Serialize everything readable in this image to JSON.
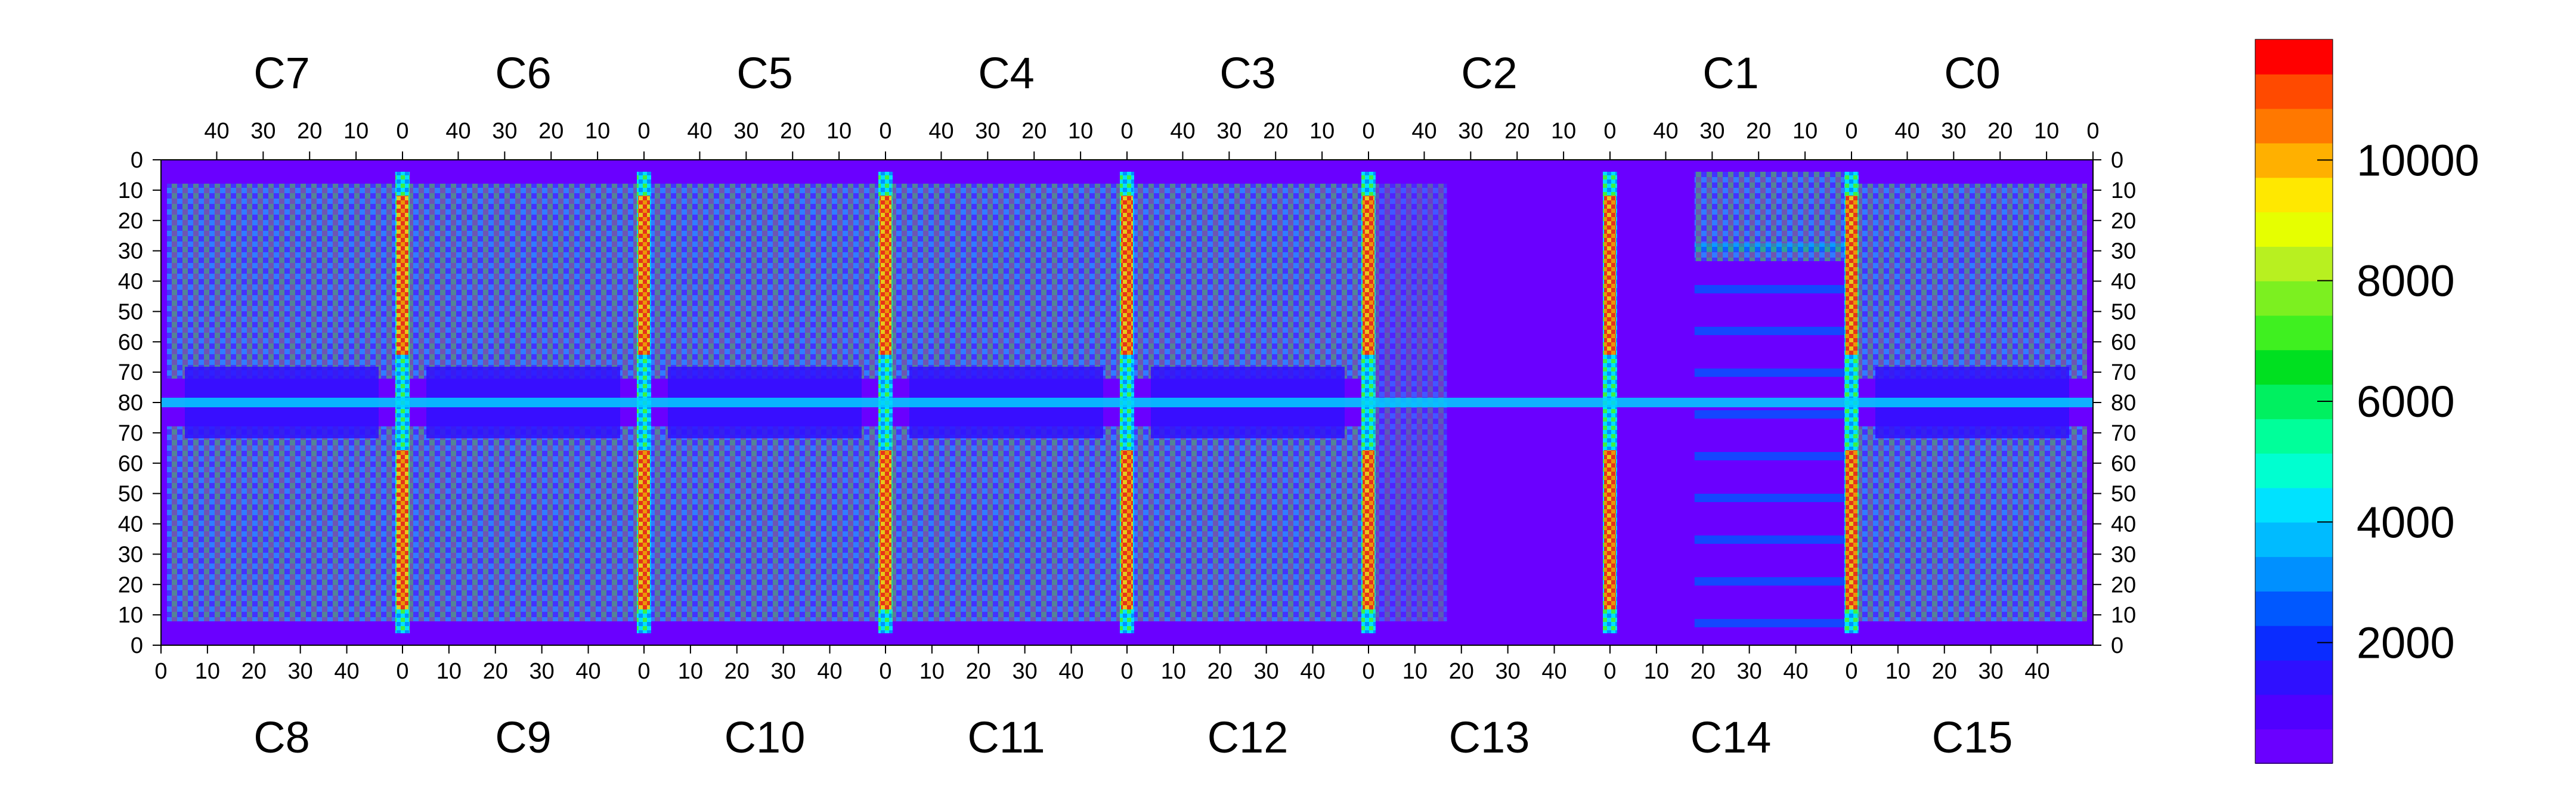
{
  "chart_data": {
    "type": "heatmap",
    "title": "",
    "chips_top": [
      "C7",
      "C6",
      "C5",
      "C4",
      "C3",
      "C2",
      "C1",
      "C0"
    ],
    "chips_bottom": [
      "C8",
      "C9",
      "C10",
      "C11",
      "C12",
      "C13",
      "C14",
      "C15"
    ],
    "x_ticks_top": [
      "40",
      "30",
      "20",
      "10",
      "0"
    ],
    "x_ticks_bottom": [
      "0",
      "10",
      "20",
      "30",
      "40"
    ],
    "y_ticks": [
      "0",
      "10",
      "20",
      "30",
      "40",
      "50",
      "60",
      "70",
      "80",
      "70",
      "60",
      "50",
      "40",
      "30",
      "20",
      "10",
      "0"
    ],
    "x_range_per_chip": [
      0,
      52
    ],
    "y_range_per_half": [
      0,
      80
    ],
    "colorbar": {
      "min": 0,
      "max": 12000,
      "ticks": [
        "2000",
        "4000",
        "6000",
        "8000",
        "10000"
      ],
      "tick_values": [
        2000,
        4000,
        6000,
        8000,
        10000
      ],
      "colors": [
        "#6a00ff",
        "#5000ff",
        "#2f10ff",
        "#0a2cff",
        "#0058ff",
        "#0090ff",
        "#00bbff",
        "#00e2ff",
        "#00ffd0",
        "#00ff9a",
        "#00f060",
        "#00e020",
        "#3ff020",
        "#7cf020",
        "#b8f020",
        "#e6ff00",
        "#ffe800",
        "#ffb000",
        "#ff7800",
        "#ff4a00",
        "#ff0000"
      ]
    }
  }
}
